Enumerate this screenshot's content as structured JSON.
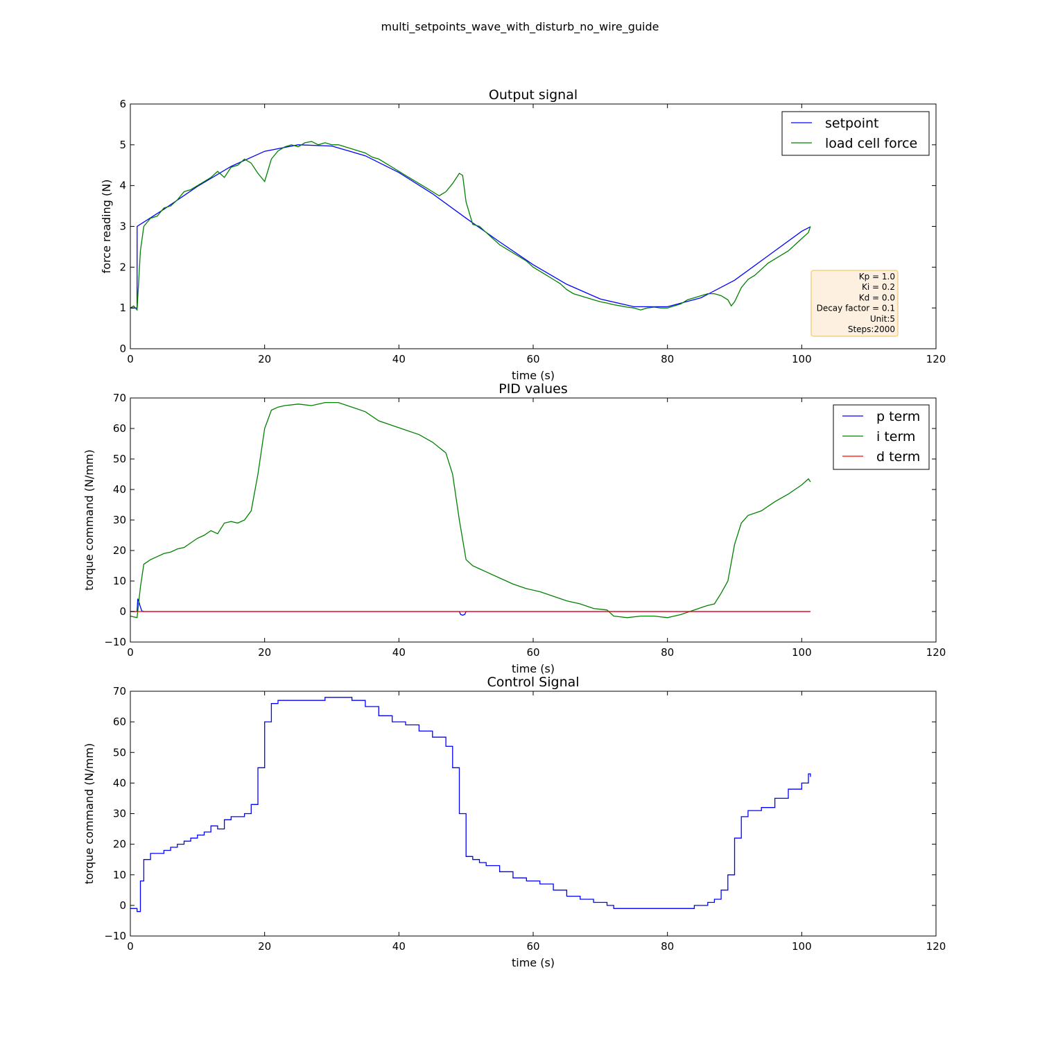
{
  "figure": {
    "suptitle": "multi_setpoints_wave_with_disturb_no_wire_guide"
  },
  "chart_data": [
    {
      "type": "line",
      "title": "Output signal",
      "xlabel": "time (s)",
      "ylabel": "force reading (N)",
      "xlim": [
        0,
        120
      ],
      "ylim": [
        0,
        6
      ],
      "xticks": [
        "0",
        "20",
        "40",
        "60",
        "80",
        "100",
        "120"
      ],
      "yticks": [
        "0",
        "1",
        "2",
        "3",
        "4",
        "5",
        "6"
      ],
      "grid": false,
      "legend": "top-right",
      "annotation": [
        "Kp = 1.0",
        "Ki = 0.2",
        "Kd = 0.0",
        "Decay factor = 0.1",
        "Unit:5",
        "Steps:2000"
      ],
      "series": [
        {
          "name": "setpoint",
          "color": "#0000ff",
          "x": [
            0,
            1,
            1.01,
            5,
            10,
            15,
            20,
            25,
            30,
            35,
            40,
            45,
            50,
            55,
            60,
            65,
            70,
            75,
            80,
            85,
            90,
            95,
            100,
            101.3
          ],
          "y": [
            1.0,
            1.0,
            3.0,
            3.42,
            3.98,
            4.47,
            4.84,
            5.0,
            4.97,
            4.73,
            4.32,
            3.8,
            3.2,
            2.62,
            2.06,
            1.58,
            1.22,
            1.03,
            1.03,
            1.25,
            1.68,
            2.28,
            2.88,
            2.99
          ]
        },
        {
          "name": "load cell force",
          "color": "#008000",
          "x": [
            0,
            0.5,
            1,
            1.5,
            2,
            2.5,
            3,
            4,
            5,
            6,
            7,
            8,
            9,
            10,
            11,
            12,
            13,
            14,
            15,
            16,
            17,
            18,
            19,
            20,
            21,
            22,
            23,
            24,
            25,
            26,
            27,
            28,
            29,
            30,
            31,
            32,
            33,
            34,
            35,
            36,
            37,
            38,
            39,
            40,
            41,
            42,
            43,
            44,
            45,
            46,
            47,
            48,
            49,
            49.5,
            50,
            51,
            52,
            53,
            54,
            55,
            56,
            57,
            58,
            59,
            60,
            61,
            62,
            63,
            64,
            65,
            66,
            67,
            68,
            69,
            70,
            71,
            72,
            73,
            74,
            75,
            76,
            77,
            78,
            79,
            80,
            81,
            82,
            83,
            84,
            85,
            86,
            87,
            88,
            89,
            89.5,
            90,
            91,
            92,
            93,
            94,
            95,
            96,
            97,
            98,
            99,
            100,
            101,
            101.3
          ],
          "y": [
            1.0,
            1.05,
            0.95,
            2.4,
            3.0,
            3.1,
            3.2,
            3.25,
            3.45,
            3.5,
            3.65,
            3.85,
            3.9,
            4.0,
            4.1,
            4.2,
            4.35,
            4.2,
            4.45,
            4.5,
            4.65,
            4.55,
            4.3,
            4.1,
            4.65,
            4.85,
            4.95,
            5.0,
            4.95,
            5.05,
            5.08,
            5.0,
            5.05,
            5.0,
            5.0,
            4.95,
            4.9,
            4.85,
            4.8,
            4.7,
            4.65,
            4.55,
            4.45,
            4.35,
            4.25,
            4.15,
            4.05,
            3.95,
            3.85,
            3.75,
            3.85,
            4.05,
            4.3,
            4.25,
            3.6,
            3.05,
            3.0,
            2.85,
            2.7,
            2.55,
            2.45,
            2.35,
            2.25,
            2.15,
            2.0,
            1.9,
            1.8,
            1.7,
            1.6,
            1.45,
            1.35,
            1.3,
            1.25,
            1.2,
            1.15,
            1.12,
            1.08,
            1.05,
            1.02,
            1.0,
            0.95,
            1.0,
            1.02,
            1.0,
            1.0,
            1.05,
            1.1,
            1.2,
            1.25,
            1.3,
            1.35,
            1.35,
            1.3,
            1.2,
            1.05,
            1.15,
            1.5,
            1.7,
            1.8,
            1.95,
            2.1,
            2.2,
            2.3,
            2.4,
            2.55,
            2.7,
            2.85,
            3.0
          ]
        }
      ]
    },
    {
      "type": "line",
      "title": "PID values",
      "xlabel": "time (s)",
      "ylabel": "torque command (N/mm)",
      "xlim": [
        0,
        120
      ],
      "ylim": [
        -10,
        70
      ],
      "xticks": [
        "0",
        "20",
        "40",
        "60",
        "80",
        "100",
        "120"
      ],
      "yticks": [
        "−10",
        "0",
        "10",
        "20",
        "30",
        "40",
        "50",
        "60",
        "70"
      ],
      "grid": false,
      "legend": "top-right",
      "series": [
        {
          "name": "p term",
          "color": "#0000ff",
          "x": [
            0,
            1,
            1.1,
            1.3,
            1.5,
            1.7,
            2,
            49,
            49.2,
            49.5,
            49.8,
            50,
            101.3
          ],
          "y": [
            0,
            0,
            4.2,
            3.0,
            1.5,
            0.2,
            0,
            0,
            -1.0,
            -1.2,
            -1.0,
            0,
            0
          ]
        },
        {
          "name": "i term",
          "color": "#008000",
          "x": [
            0,
            1,
            1.5,
            2,
            3,
            4,
            5,
            6,
            7,
            8,
            9,
            10,
            11,
            12,
            13,
            14,
            15,
            16,
            17,
            18,
            19,
            20,
            21,
            22,
            23,
            25,
            27,
            29,
            31,
            33,
            35,
            37,
            39,
            41,
            43,
            45,
            47,
            48,
            49,
            50,
            51,
            52,
            53,
            55,
            57,
            59,
            61,
            63,
            65,
            67,
            69,
            71,
            72,
            74,
            76,
            78,
            80,
            82,
            84,
            86,
            87,
            88,
            89,
            90,
            91,
            92,
            94,
            96,
            98,
            100,
            101,
            101.3
          ],
          "y": [
            -1.5,
            -2.0,
            8.0,
            15.5,
            17.0,
            18.0,
            19.0,
            19.5,
            20.5,
            21.0,
            22.5,
            24.0,
            25.0,
            26.5,
            25.5,
            29.0,
            29.5,
            29.0,
            30.0,
            33.0,
            45.0,
            60.0,
            66.0,
            67.0,
            67.5,
            68.0,
            67.5,
            68.5,
            68.5,
            67.0,
            65.5,
            62.5,
            61.0,
            59.5,
            58.0,
            55.5,
            52.0,
            45.0,
            30.0,
            17.0,
            15.0,
            14.0,
            13.0,
            11.0,
            9.0,
            7.5,
            6.5,
            5.0,
            3.5,
            2.5,
            1.0,
            0.5,
            -1.5,
            -2.0,
            -1.5,
            -1.5,
            -2.0,
            -1.0,
            0.5,
            2.0,
            2.5,
            6.0,
            10.0,
            22.0,
            29.0,
            31.5,
            33.0,
            36.0,
            38.5,
            41.5,
            43.5,
            42.5
          ]
        },
        {
          "name": "d term",
          "color": "#ff0000",
          "x": [
            0,
            101.3
          ],
          "y": [
            0,
            0
          ]
        }
      ]
    },
    {
      "type": "line",
      "title": "Control Signal",
      "xlabel": "time (s)",
      "ylabel": "torque command (N/mm)",
      "xlim": [
        0,
        120
      ],
      "ylim": [
        -10,
        70
      ],
      "xticks": [
        "0",
        "20",
        "40",
        "60",
        "80",
        "100",
        "120"
      ],
      "yticks": [
        "−10",
        "0",
        "10",
        "20",
        "30",
        "40",
        "50",
        "60",
        "70"
      ],
      "grid": false,
      "series": [
        {
          "name": "control signal",
          "color": "#0000ff",
          "step": true,
          "x": [
            0,
            1,
            1.5,
            2,
            3,
            4,
            5,
            6,
            7,
            8,
            9,
            10,
            11,
            12,
            13,
            14,
            15,
            16,
            17,
            18,
            19,
            20,
            21,
            22,
            23,
            25,
            27,
            29,
            31,
            33,
            35,
            37,
            39,
            41,
            43,
            45,
            47,
            48,
            49,
            50,
            51,
            52,
            53,
            55,
            57,
            59,
            61,
            63,
            65,
            67,
            69,
            71,
            72,
            74,
            76,
            78,
            80,
            82,
            84,
            86,
            87,
            88,
            89,
            90,
            91,
            92,
            94,
            96,
            98,
            100,
            101,
            101.3
          ],
          "y": [
            -1,
            -2,
            8,
            15,
            17,
            17,
            18,
            19,
            20,
            21,
            22,
            23,
            24,
            26,
            25,
            28,
            29,
            29,
            30,
            33,
            45,
            60,
            66,
            67,
            67,
            67,
            67,
            68,
            68,
            67,
            65,
            62,
            60,
            59,
            57,
            55,
            52,
            45,
            30,
            16,
            15,
            14,
            13,
            11,
            9,
            8,
            7,
            5,
            3,
            2,
            1,
            0,
            -1,
            -1,
            -1,
            -1,
            -1,
            -1,
            0,
            1,
            2,
            5,
            10,
            22,
            29,
            31,
            32,
            35,
            38,
            40,
            43,
            42
          ]
        }
      ]
    }
  ]
}
